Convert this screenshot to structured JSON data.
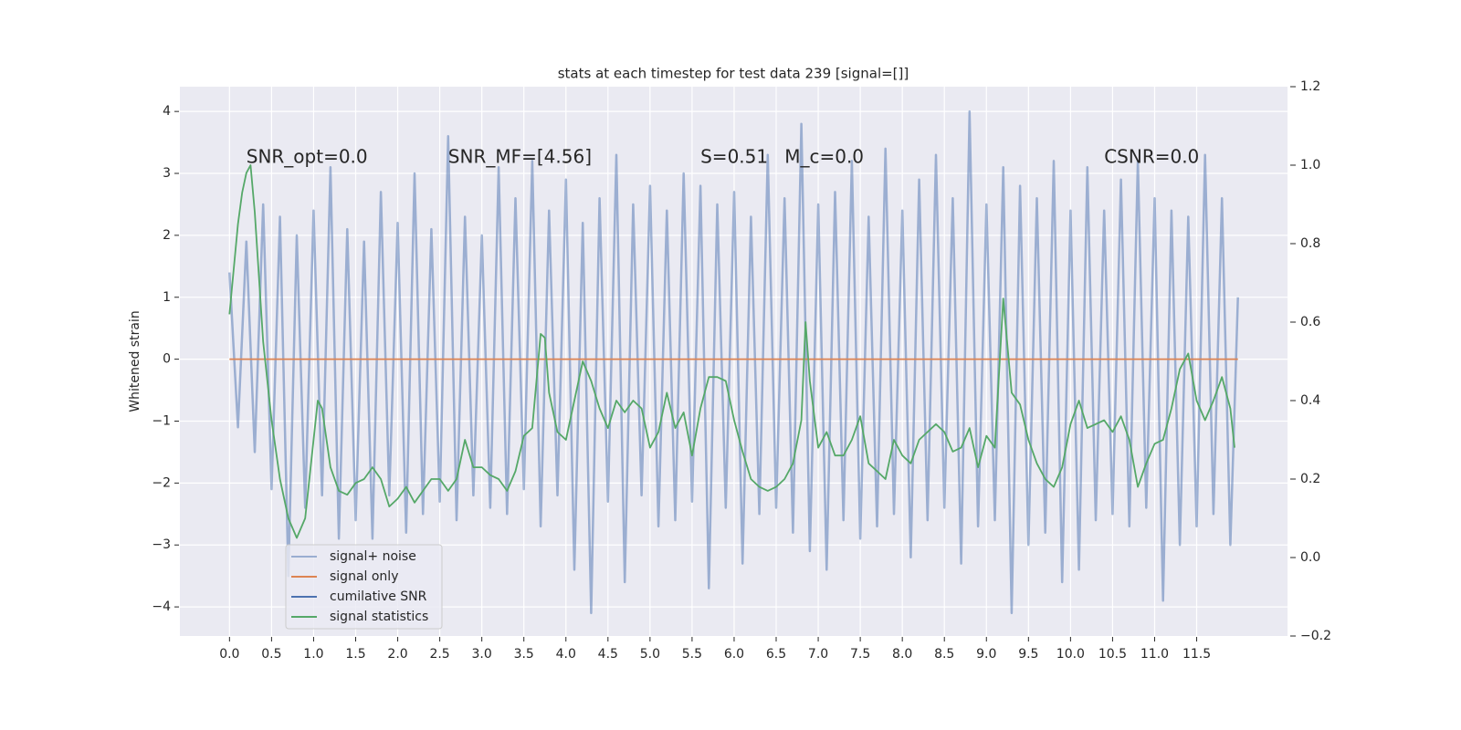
{
  "chart_data": {
    "type": "line",
    "title": "stats at each timestep for test data 239 [signal=[]]",
    "ylabel": "Whitened strain",
    "xlim": [
      -0.59,
      12.58
    ],
    "ylim": [
      -4.47,
      4.4
    ],
    "y2lim": [
      -0.2,
      1.2
    ],
    "xticks": [
      {
        "value": 0,
        "label": "0.0"
      },
      0.5,
      {
        "value": 1,
        "label": "1.0"
      },
      1.5,
      {
        "value": 2,
        "label": "2.0"
      },
      2.5,
      {
        "value": 3,
        "label": "3.0"
      },
      3.5,
      {
        "value": 4,
        "label": "4.0"
      },
      4.5,
      {
        "value": 5,
        "label": "5.0"
      },
      5.5,
      {
        "value": 6,
        "label": "6.0"
      },
      6.5,
      {
        "value": 7,
        "label": "7.0"
      },
      7.5,
      {
        "value": 8,
        "label": "8.0"
      },
      8.5,
      {
        "value": 9,
        "label": "9.0"
      },
      9.5,
      {
        "value": 10,
        "label": "10.0"
      },
      10.5,
      {
        "value": 11,
        "label": "11.0"
      },
      11.5
    ],
    "yticks": [
      {
        "value": -4,
        "label": "−4"
      },
      {
        "value": -3,
        "label": "−3"
      },
      {
        "value": -2,
        "label": "−2"
      },
      {
        "value": -1,
        "label": "−1"
      },
      0,
      1,
      2,
      3,
      4
    ],
    "y2ticks": [
      {
        "value": -0.2,
        "label": "−0.2"
      },
      {
        "value": 0,
        "label": "0.0"
      },
      0.2,
      0.4,
      0.6,
      0.8,
      {
        "value": 1,
        "label": "1.0"
      },
      1.2
    ],
    "grid": true,
    "legend": "lower left",
    "annotations": [
      {
        "text": "SNR_opt=0.0",
        "x": 0.2
      },
      {
        "text": "SNR_MF=[4.56]",
        "x": 2.6
      },
      {
        "text": "S=0.51",
        "x": 5.6
      },
      {
        "text": "M_c=0.0",
        "x": 6.6
      },
      {
        "text": "CSNR=0.0",
        "x": 10.4
      }
    ],
    "series": [
      {
        "name": "signal+ noise",
        "color": "#4c72b0",
        "x": [
          0.0,
          0.1,
          0.2,
          0.3,
          0.4,
          0.5,
          0.6,
          0.7,
          0.8,
          0.9,
          1.0,
          1.1,
          1.2,
          1.3,
          1.4,
          1.5,
          1.6,
          1.7,
          1.8,
          1.9,
          2.0,
          2.1,
          2.2,
          2.3,
          2.4,
          2.5,
          2.6,
          2.7,
          2.8,
          2.9,
          3.0,
          3.1,
          3.2,
          3.3,
          3.4,
          3.5,
          3.6,
          3.7,
          3.8,
          3.9,
          4.0,
          4.1,
          4.2,
          4.3,
          4.4,
          4.5,
          4.6,
          4.7,
          4.8,
          4.9,
          5.0,
          5.1,
          5.2,
          5.3,
          5.4,
          5.5,
          5.6,
          5.7,
          5.8,
          5.9,
          6.0,
          6.1,
          6.2,
          6.3,
          6.4,
          6.5,
          6.6,
          6.7,
          6.8,
          6.9,
          7.0,
          7.1,
          7.2,
          7.3,
          7.4,
          7.5,
          7.6,
          7.7,
          7.8,
          7.9,
          8.0,
          8.1,
          8.2,
          8.3,
          8.4,
          8.5,
          8.6,
          8.7,
          8.8,
          8.9,
          9.0,
          9.1,
          9.2,
          9.3,
          9.4,
          9.5,
          9.6,
          9.7,
          9.8,
          9.9,
          10.0,
          10.1,
          10.2,
          10.3,
          10.4,
          10.5,
          10.6,
          10.7,
          10.8,
          10.9,
          11.0,
          11.1,
          11.2,
          11.3,
          11.4,
          11.5,
          11.6,
          11.7,
          11.8,
          11.9,
          11.99
        ],
        "values": [
          1.4,
          -1.1,
          1.9,
          -1.5,
          2.5,
          -2.1,
          2.3,
          -3.5,
          2.0,
          -2.4,
          2.4,
          -2.2,
          3.1,
          -2.9,
          2.1,
          -2.6,
          1.9,
          -2.9,
          2.7,
          -2.2,
          2.2,
          -2.8,
          3.0,
          -2.5,
          2.1,
          -2.3,
          3.6,
          -2.6,
          2.3,
          -2.2,
          2.0,
          -2.4,
          3.1,
          -2.5,
          2.6,
          -2.1,
          3.2,
          -2.7,
          2.4,
          -2.2,
          2.9,
          -3.4,
          2.2,
          -4.1,
          2.6,
          -2.3,
          3.3,
          -3.6,
          2.5,
          -2.2,
          2.8,
          -2.7,
          2.4,
          -2.6,
          3.0,
          -2.3,
          2.8,
          -3.7,
          2.5,
          -2.4,
          2.7,
          -3.3,
          2.3,
          -2.5,
          3.3,
          -2.4,
          2.6,
          -2.8,
          3.8,
          -3.1,
          2.5,
          -3.4,
          2.7,
          -2.6,
          3.2,
          -2.9,
          2.3,
          -2.7,
          3.4,
          -2.5,
          2.4,
          -3.2,
          2.9,
          -2.6,
          3.3,
          -2.4,
          2.6,
          -3.3,
          4.0,
          -2.7,
          2.5,
          -2.6,
          3.1,
          -4.1,
          2.8,
          -3.0,
          2.6,
          -2.8,
          3.2,
          -3.6,
          2.4,
          -3.4,
          3.1,
          -2.6,
          2.4,
          -2.5,
          2.9,
          -2.7,
          3.2,
          -2.4,
          2.6,
          -3.9,
          2.4,
          -3.0,
          2.3,
          -2.7,
          3.3,
          -2.5,
          2.6,
          -3.0,
          1.0
        ]
      },
      {
        "name": "signal only",
        "color": "#dd8452",
        "x": [
          0,
          11.99
        ],
        "values": [
          0,
          0
        ]
      },
      {
        "name": "cumilative SNR",
        "color": "#4c72b0",
        "x": [],
        "values": []
      },
      {
        "name": "signal statistics",
        "color": "#55a868",
        "axis": "y2",
        "x": [
          0.0,
          0.1,
          0.15,
          0.2,
          0.25,
          0.3,
          0.4,
          0.5,
          0.6,
          0.7,
          0.8,
          0.9,
          1.0,
          1.05,
          1.1,
          1.2,
          1.3,
          1.4,
          1.5,
          1.6,
          1.7,
          1.8,
          1.9,
          2.0,
          2.1,
          2.2,
          2.3,
          2.4,
          2.5,
          2.6,
          2.7,
          2.8,
          2.9,
          3.0,
          3.1,
          3.2,
          3.3,
          3.4,
          3.5,
          3.6,
          3.7,
          3.75,
          3.8,
          3.9,
          4.0,
          4.1,
          4.2,
          4.3,
          4.4,
          4.5,
          4.6,
          4.7,
          4.8,
          4.9,
          5.0,
          5.1,
          5.2,
          5.3,
          5.4,
          5.5,
          5.6,
          5.7,
          5.8,
          5.9,
          6.0,
          6.1,
          6.2,
          6.3,
          6.4,
          6.5,
          6.6,
          6.7,
          6.8,
          6.85,
          6.9,
          7.0,
          7.1,
          7.2,
          7.3,
          7.4,
          7.5,
          7.6,
          7.7,
          7.8,
          7.9,
          8.0,
          8.1,
          8.2,
          8.3,
          8.4,
          8.5,
          8.6,
          8.7,
          8.8,
          8.9,
          9.0,
          9.1,
          9.2,
          9.3,
          9.4,
          9.5,
          9.6,
          9.7,
          9.8,
          9.9,
          10.0,
          10.1,
          10.2,
          10.3,
          10.4,
          10.5,
          10.6,
          10.7,
          10.8,
          10.9,
          11.0,
          11.1,
          11.2,
          11.3,
          11.4,
          11.5,
          11.6,
          11.7,
          11.8,
          11.9,
          11.95
        ],
        "values": [
          0.62,
          0.85,
          0.93,
          0.98,
          1.0,
          0.88,
          0.55,
          0.35,
          0.2,
          0.1,
          0.05,
          0.1,
          0.3,
          0.4,
          0.38,
          0.23,
          0.17,
          0.16,
          0.19,
          0.2,
          0.23,
          0.2,
          0.13,
          0.15,
          0.18,
          0.14,
          0.17,
          0.2,
          0.2,
          0.17,
          0.2,
          0.3,
          0.23,
          0.23,
          0.21,
          0.2,
          0.17,
          0.22,
          0.31,
          0.33,
          0.57,
          0.56,
          0.42,
          0.32,
          0.3,
          0.4,
          0.5,
          0.45,
          0.38,
          0.33,
          0.4,
          0.37,
          0.4,
          0.38,
          0.28,
          0.32,
          0.42,
          0.33,
          0.37,
          0.26,
          0.38,
          0.46,
          0.46,
          0.45,
          0.35,
          0.27,
          0.2,
          0.18,
          0.17,
          0.18,
          0.2,
          0.24,
          0.35,
          0.6,
          0.45,
          0.28,
          0.32,
          0.26,
          0.26,
          0.3,
          0.36,
          0.24,
          0.22,
          0.2,
          0.3,
          0.26,
          0.24,
          0.3,
          0.32,
          0.34,
          0.32,
          0.27,
          0.28,
          0.33,
          0.23,
          0.31,
          0.28,
          0.66,
          0.42,
          0.39,
          0.3,
          0.24,
          0.2,
          0.18,
          0.23,
          0.34,
          0.4,
          0.33,
          0.34,
          0.35,
          0.32,
          0.36,
          0.3,
          0.18,
          0.24,
          0.29,
          0.3,
          0.38,
          0.48,
          0.52,
          0.4,
          0.35,
          0.4,
          0.46,
          0.38,
          0.28
        ]
      }
    ]
  }
}
